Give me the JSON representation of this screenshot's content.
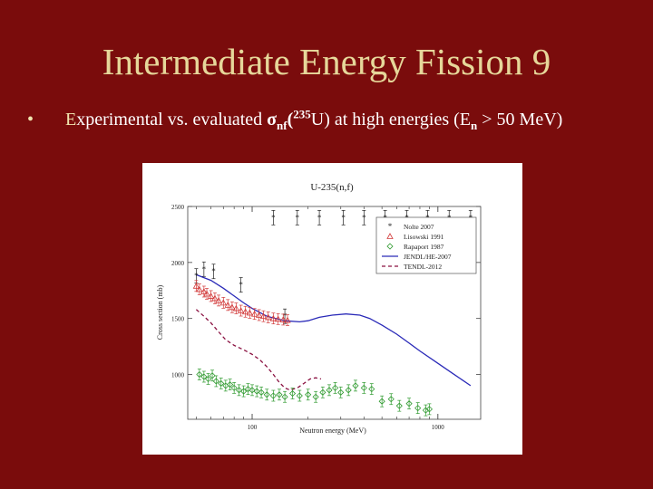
{
  "slide": {
    "title": "Intermediate Energy Fission 9",
    "bullet": {
      "first_letter": "E",
      "text_a": "xperimental vs. evaluated ",
      "sigma": "σ",
      "sigma_sub": "nf",
      "open_paren": "(",
      "isotope_mass": "235",
      "isotope_rest": "U) at high energies (E",
      "energy_sub": "n",
      "text_b": " > 50 MeV)"
    }
  },
  "colors": {
    "background": "#7a0c0c",
    "title": "#e6d79a",
    "nolte": "#222222",
    "lisowski": "#d23a3a",
    "rapaport": "#2f9a2f",
    "jendl": "#2a2ab8",
    "tendl": "#8a1040"
  },
  "chart_data": {
    "type": "line",
    "title": "U-235(n,f)",
    "xlabel": "Neutron energy (MeV)",
    "ylabel": "Cross section (mb)",
    "xscale": "log",
    "xlim": [
      45,
      1700
    ],
    "ylim": [
      600,
      2500
    ],
    "xticks": [
      {
        "value": 100,
        "label": "100"
      },
      {
        "value": 1000,
        "label": "1000"
      }
    ],
    "yticks": [
      {
        "value": 1000,
        "label": "1000"
      },
      {
        "value": 1500,
        "label": "1500"
      },
      {
        "value": 2000,
        "label": "2000"
      },
      {
        "value": 2500,
        "label": "2500"
      }
    ],
    "legend_position": "top-right",
    "series": [
      {
        "name": "Nolte 2007",
        "kind": "points",
        "marker": "star",
        "points": [
          [
            55,
            1940
          ],
          [
            87,
            1800
          ],
          [
            130,
            2400
          ],
          [
            175,
            2400
          ],
          [
            230,
            2400
          ],
          [
            310,
            2400
          ],
          [
            400,
            2400
          ],
          [
            520,
            2400
          ],
          [
            680,
            2400
          ],
          [
            880,
            2400
          ],
          [
            1150,
            2400
          ],
          [
            1500,
            2400
          ],
          [
            50,
            1880
          ],
          [
            62,
            1920
          ],
          [
            150,
            1520
          ]
        ]
      },
      {
        "name": "Lisowski 1991",
        "kind": "points",
        "marker": "triangle",
        "points": [
          [
            50,
            1790
          ],
          [
            52,
            1760
          ],
          [
            55,
            1740
          ],
          [
            57,
            1720
          ],
          [
            60,
            1700
          ],
          [
            63,
            1680
          ],
          [
            66,
            1660
          ],
          [
            70,
            1640
          ],
          [
            74,
            1620
          ],
          [
            78,
            1600
          ],
          [
            82,
            1590
          ],
          [
            87,
            1570
          ],
          [
            92,
            1560
          ],
          [
            97,
            1550
          ],
          [
            103,
            1540
          ],
          [
            109,
            1530
          ],
          [
            115,
            1520
          ],
          [
            122,
            1510
          ],
          [
            130,
            1500
          ],
          [
            138,
            1495
          ],
          [
            147,
            1490
          ],
          [
            155,
            1485
          ]
        ]
      },
      {
        "name": "Rapaport 1987",
        "kind": "points",
        "marker": "diamond",
        "points": [
          [
            52,
            1000
          ],
          [
            55,
            980
          ],
          [
            58,
            960
          ],
          [
            61,
            990
          ],
          [
            64,
            940
          ],
          [
            68,
            920
          ],
          [
            72,
            900
          ],
          [
            76,
            910
          ],
          [
            80,
            880
          ],
          [
            85,
            860
          ],
          [
            90,
            850
          ],
          [
            95,
            870
          ],
          [
            100,
            860
          ],
          [
            106,
            850
          ],
          [
            112,
            840
          ],
          [
            120,
            820
          ],
          [
            130,
            810
          ],
          [
            140,
            820
          ],
          [
            150,
            800
          ],
          [
            165,
            830
          ],
          [
            180,
            810
          ],
          [
            200,
            820
          ],
          [
            220,
            800
          ],
          [
            240,
            840
          ],
          [
            260,
            860
          ],
          [
            280,
            880
          ],
          [
            300,
            840
          ],
          [
            330,
            860
          ],
          [
            360,
            900
          ],
          [
            400,
            880
          ],
          [
            440,
            870
          ],
          [
            500,
            760
          ],
          [
            560,
            780
          ],
          [
            620,
            720
          ],
          [
            700,
            740
          ],
          [
            780,
            700
          ],
          [
            860,
            680
          ],
          [
            900,
            690
          ]
        ]
      },
      {
        "name": "JENDL/HE-2007",
        "kind": "line",
        "style": "solid",
        "points": [
          [
            50,
            1890
          ],
          [
            60,
            1840
          ],
          [
            70,
            1770
          ],
          [
            80,
            1700
          ],
          [
            90,
            1640
          ],
          [
            100,
            1590
          ],
          [
            120,
            1520
          ],
          [
            150,
            1480
          ],
          [
            180,
            1470
          ],
          [
            200,
            1480
          ],
          [
            230,
            1510
          ],
          [
            270,
            1530
          ],
          [
            320,
            1540
          ],
          [
            380,
            1530
          ],
          [
            430,
            1500
          ],
          [
            500,
            1440
          ],
          [
            600,
            1360
          ],
          [
            700,
            1280
          ],
          [
            800,
            1210
          ],
          [
            1000,
            1100
          ],
          [
            1200,
            1010
          ],
          [
            1500,
            900
          ]
        ]
      },
      {
        "name": "TENDL-2012",
        "kind": "line",
        "style": "dashed",
        "points": [
          [
            50,
            1580
          ],
          [
            55,
            1520
          ],
          [
            60,
            1460
          ],
          [
            66,
            1380
          ],
          [
            72,
            1310
          ],
          [
            80,
            1260
          ],
          [
            90,
            1220
          ],
          [
            100,
            1180
          ],
          [
            110,
            1130
          ],
          [
            120,
            1070
          ],
          [
            130,
            1000
          ],
          [
            140,
            930
          ],
          [
            150,
            880
          ],
          [
            160,
            860
          ],
          [
            175,
            880
          ],
          [
            190,
            920
          ],
          [
            205,
            960
          ],
          [
            220,
            970
          ],
          [
            235,
            960
          ]
        ]
      }
    ]
  }
}
